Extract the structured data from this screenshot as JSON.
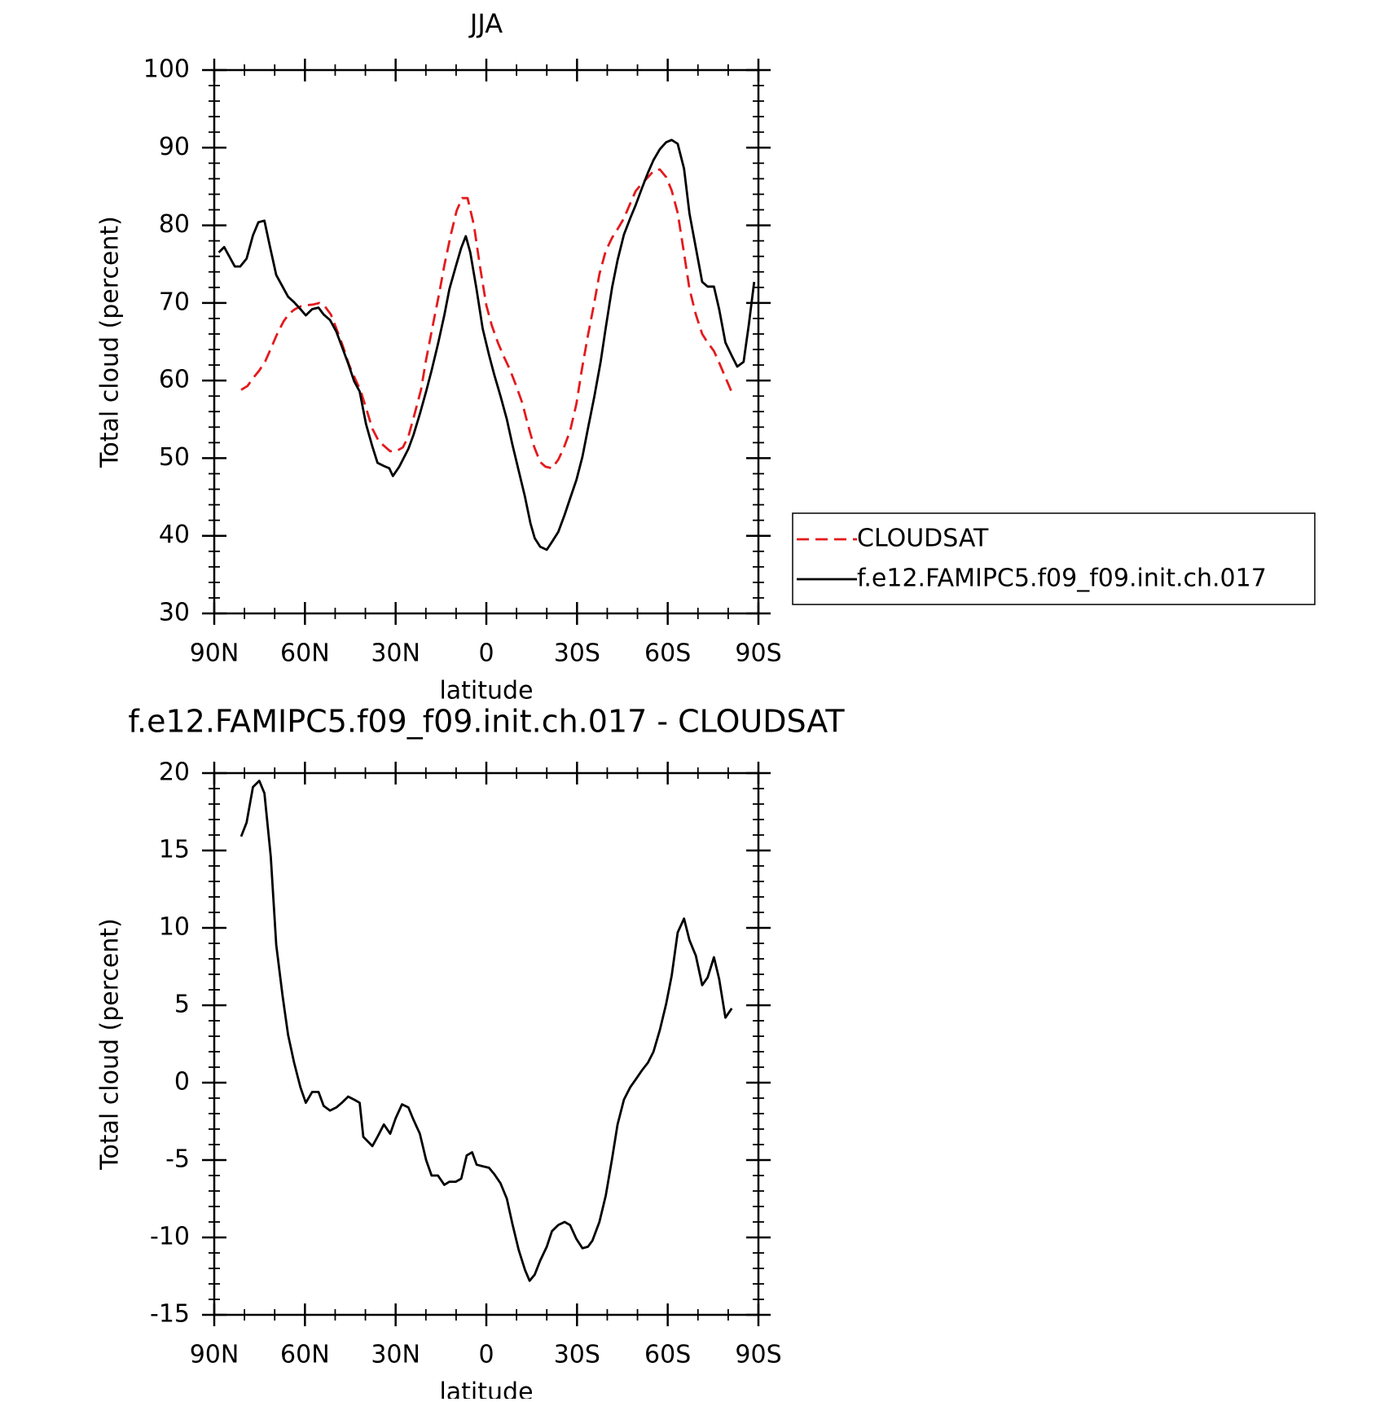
{
  "chart_data": [
    {
      "type": "line",
      "title": "JJA",
      "xlabel": "latitude",
      "ylabel": "Total cloud (percent)",
      "xlim": [
        90,
        -90
      ],
      "xticks": [
        {
          "value": 90,
          "label": "90N"
        },
        {
          "value": 60,
          "label": "60N"
        },
        {
          "value": 30,
          "label": "30N"
        },
        0,
        {
          "value": -30,
          "label": "30S"
        },
        {
          "value": -60,
          "label": "60S"
        },
        {
          "value": -90,
          "label": "90S"
        }
      ],
      "ylim": [
        30,
        100
      ],
      "yticks": [
        30,
        40,
        50,
        60,
        70,
        80,
        90,
        100
      ],
      "legend": "right",
      "series": [
        {
          "name": "CLOUDSAT",
          "color": "#e41a1c",
          "dashed": true,
          "x": [
            81.1,
            79.0,
            77.2,
            75.1,
            73.1,
            71.3,
            69.2,
            67.1,
            65.3,
            63.3,
            61.2,
            59.4,
            57.3,
            55.2,
            53.5,
            51.4,
            49.6,
            47.5,
            45.4,
            43.7,
            41.6,
            39.5,
            37.7,
            35.6,
            33.6,
            31.8,
            29.8,
            27.6,
            25.8,
            23.8,
            21.6,
            19.9,
            17.8,
            15.7,
            13.9,
            11.8,
            9.8,
            8.0,
            6.2,
            4.1,
            2.1,
            0.0,
            -1.8,
            -3.9,
            -5.9,
            -7.7,
            -9.8,
            -11.9,
            -13.7,
            -15.8,
            -17.8,
            -19.6,
            -21.7,
            -23.8,
            -25.5,
            -27.7,
            -29.8,
            -31.5,
            -33.6,
            -35.7,
            -37.4,
            -39.5,
            -41.6,
            -43.4,
            -45.5,
            -47.6,
            -49.4,
            -51.5,
            -53.5,
            -55.3,
            -57.4,
            -59.5,
            -61.3,
            -63.3,
            -65.4,
            -67.2,
            -69.3,
            -71.4,
            -73.2,
            -75.3,
            -77.0,
            -79.1,
            -81.2
          ],
          "values": [
            58.8,
            59.3,
            60.3,
            61.3,
            62.5,
            64.1,
            66.0,
            67.6,
            68.6,
            69.2,
            69.6,
            69.7,
            69.8,
            70.0,
            69.6,
            68.5,
            66.7,
            64.5,
            62.0,
            60.5,
            58.7,
            56.1,
            53.8,
            52.2,
            51.5,
            50.9,
            50.9,
            51.4,
            52.8,
            55.6,
            58.8,
            62.7,
            66.9,
            71.0,
            74.8,
            78.7,
            81.9,
            83.5,
            83.5,
            80.0,
            74.7,
            69.7,
            67.1,
            64.8,
            63.0,
            61.5,
            59.4,
            57.1,
            54.4,
            51.5,
            49.5,
            48.9,
            48.7,
            49.8,
            51.2,
            53.5,
            57.0,
            61.2,
            65.8,
            70.0,
            73.7,
            76.7,
            78.4,
            79.5,
            80.9,
            82.8,
            84.4,
            85.4,
            86.2,
            87.0,
            87.2,
            86.2,
            84.5,
            81.6,
            76.4,
            71.8,
            68.5,
            66.0,
            64.9,
            63.8,
            62.3,
            60.4,
            58.5
          ]
        },
        {
          "name": "f.e12.FAMIPC5.f09_f09.init.ch.017",
          "color": "#000000",
          "dashed": false,
          "x": [
            88.5,
            86.7,
            83.2,
            81.4,
            79.3,
            77.2,
            75.4,
            73.4,
            71.6,
            69.5,
            65.6,
            63.6,
            61.5,
            59.7,
            57.6,
            55.5,
            53.8,
            51.7,
            49.6,
            47.8,
            45.7,
            43.7,
            41.9,
            39.8,
            37.7,
            36.0,
            33.9,
            32.1,
            30.9,
            28.8,
            25.8,
            24.1,
            22.0,
            19.9,
            18.1,
            16.0,
            13.9,
            12.2,
            10.1,
            8.3,
            6.8,
            5.3,
            3.2,
            1.2,
            -0.9,
            -2.6,
            -4.7,
            -6.8,
            -8.6,
            -10.7,
            -12.8,
            -14.6,
            -16.0,
            -17.8,
            -20.0,
            -21.7,
            -23.8,
            -25.9,
            -27.7,
            -29.8,
            -31.8,
            -33.6,
            -35.7,
            -37.8,
            -39.5,
            -41.6,
            -43.4,
            -45.5,
            -47.6,
            -49.4,
            -51.5,
            -53.5,
            -55.3,
            -57.4,
            -59.5,
            -61.3,
            -63.3,
            -65.4,
            -67.2,
            -69.3,
            -71.4,
            -73.2,
            -75.3,
            -77.0,
            -79.1,
            -81.2,
            -83.0,
            -85.1,
            -86.8,
            -88.6
          ],
          "values": [
            76.5,
            77.2,
            74.7,
            74.7,
            75.7,
            78.7,
            80.4,
            80.6,
            77.3,
            73.6,
            70.8,
            70.1,
            69.2,
            68.4,
            69.2,
            69.4,
            68.5,
            67.8,
            66.3,
            64.4,
            62.2,
            59.9,
            58.6,
            54.4,
            51.5,
            49.4,
            49.0,
            48.7,
            47.7,
            48.9,
            51.2,
            53.0,
            55.7,
            58.6,
            61.3,
            64.7,
            68.4,
            71.8,
            74.7,
            77.1,
            78.6,
            76.5,
            71.7,
            66.7,
            63.3,
            60.8,
            58.0,
            55.0,
            51.8,
            48.4,
            45.0,
            41.6,
            39.7,
            38.6,
            38.2,
            39.2,
            40.5,
            42.7,
            44.8,
            47.2,
            50.2,
            53.8,
            57.9,
            62.4,
            66.8,
            72.0,
            75.5,
            78.8,
            80.9,
            82.6,
            84.8,
            86.8,
            88.4,
            89.8,
            90.7,
            91.0,
            90.5,
            87.3,
            81.5,
            77.1,
            72.7,
            72.1,
            72.1,
            69.2,
            64.9,
            63.2,
            61.8,
            62.4,
            67.1,
            72.7
          ]
        }
      ]
    },
    {
      "type": "line",
      "title": "f.e12.FAMIPC5.f09_f09.init.ch.017 - CLOUDSAT",
      "xlabel": "latitude",
      "ylabel": "Total cloud (percent)",
      "xlim": [
        90,
        -90
      ],
      "xticks": [
        {
          "value": 90,
          "label": "90N"
        },
        {
          "value": 60,
          "label": "60N"
        },
        {
          "value": 30,
          "label": "30N"
        },
        0,
        {
          "value": -30,
          "label": "30S"
        },
        {
          "value": -60,
          "label": "60S"
        },
        {
          "value": -90,
          "label": "90S"
        }
      ],
      "ylim": [
        -15,
        20
      ],
      "yticks": [
        -15,
        -10,
        -5,
        0,
        5,
        10,
        15,
        20
      ],
      "series": [
        {
          "color": "#000000",
          "dashed": false,
          "x": [
            81.1,
            79.3,
            77.2,
            75.1,
            73.4,
            71.3,
            69.5,
            67.4,
            65.6,
            63.6,
            61.5,
            59.7,
            57.6,
            55.5,
            53.8,
            51.7,
            49.6,
            47.8,
            45.7,
            43.7,
            41.9,
            40.7,
            37.7,
            36.0,
            33.9,
            31.8,
            30.0,
            27.9,
            25.8,
            24.1,
            22.0,
            19.9,
            18.1,
            16.0,
            13.9,
            12.2,
            10.1,
            8.3,
            6.5,
            4.7,
            3.2,
            1.2,
            -0.9,
            -2.6,
            -4.7,
            -6.8,
            -8.6,
            -10.7,
            -12.8,
            -14.3,
            -16.0,
            -17.8,
            -20.0,
            -21.7,
            -23.8,
            -25.9,
            -27.7,
            -29.8,
            -31.8,
            -33.6,
            -35.1,
            -37.4,
            -39.5,
            -41.6,
            -43.4,
            -45.5,
            -47.6,
            -49.4,
            -51.5,
            -53.5,
            -55.3,
            -57.4,
            -59.5,
            -61.3,
            -63.3,
            -65.4,
            -67.2,
            -69.3,
            -71.4,
            -73.2,
            -75.3,
            -77.0,
            -79.1,
            -81.2
          ],
          "values": [
            15.9,
            16.8,
            19.1,
            19.5,
            18.7,
            14.6,
            8.9,
            5.6,
            3.1,
            1.3,
            -0.3,
            -1.3,
            -0.6,
            -0.6,
            -1.5,
            -1.8,
            -1.6,
            -1.3,
            -0.9,
            -1.1,
            -1.3,
            -3.5,
            -4.1,
            -3.5,
            -2.7,
            -3.3,
            -2.3,
            -1.4,
            -1.6,
            -2.4,
            -3.3,
            -5.0,
            -6.0,
            -6.0,
            -6.6,
            -6.4,
            -6.4,
            -6.2,
            -4.7,
            -4.5,
            -5.3,
            -5.4,
            -5.5,
            -5.9,
            -6.5,
            -7.5,
            -9.1,
            -10.8,
            -12.1,
            -12.8,
            -12.4,
            -11.5,
            -10.6,
            -9.6,
            -9.2,
            -9.0,
            -9.2,
            -10.1,
            -10.7,
            -10.6,
            -10.2,
            -9.0,
            -7.3,
            -4.9,
            -2.7,
            -1.1,
            -0.3,
            0.2,
            0.8,
            1.3,
            2.0,
            3.4,
            5.1,
            6.9,
            9.7,
            10.6,
            9.2,
            8.2,
            6.3,
            6.8,
            8.1,
            6.7,
            4.2,
            4.8
          ]
        }
      ]
    }
  ]
}
